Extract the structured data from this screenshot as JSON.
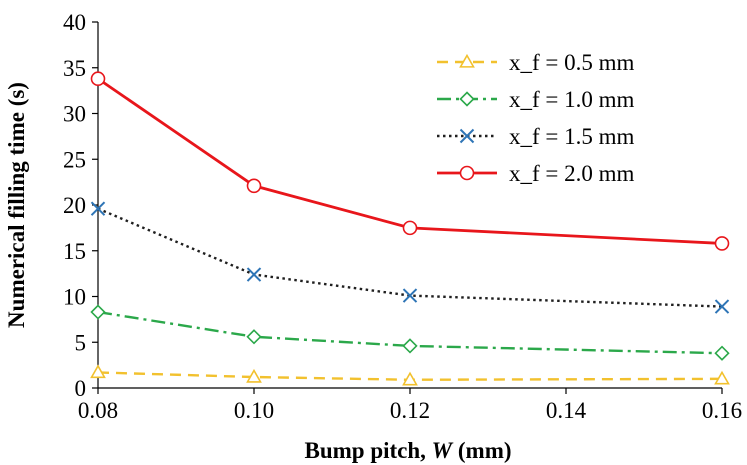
{
  "chart_data": {
    "type": "line",
    "title": "",
    "xlabel": "Bump pitch, ",
    "xlabel_italic": "W",
    "xlabel_suffix": " (mm)",
    "ylabel": "Numerical filling time (s)",
    "xlim": [
      0.08,
      0.16
    ],
    "ylim": [
      0,
      40
    ],
    "x_ticks": [
      "0.08",
      "0.10",
      "0.12",
      "0.14",
      "0.16"
    ],
    "y_ticks": [
      "0",
      "5",
      "10",
      "15",
      "20",
      "25",
      "30",
      "35",
      "40"
    ],
    "grid": false,
    "legend_position": "top-right",
    "x": [
      0.08,
      0.1,
      0.12,
      0.16
    ],
    "series": [
      {
        "name": "x_f = 0.5 mm",
        "values": [
          1.7,
          1.2,
          0.9,
          1.0
        ],
        "color": "#F2C12E",
        "dash": "dashed",
        "marker": "triangle"
      },
      {
        "name": "x_f = 1.0 mm",
        "values": [
          8.3,
          5.6,
          4.6,
          3.8
        ],
        "color": "#2BA84A",
        "dash": "dash-dot",
        "marker": "diamond"
      },
      {
        "name": "x_f = 1.5 mm",
        "values": [
          19.6,
          12.4,
          10.1,
          8.9
        ],
        "color": "#1F1F1F",
        "marker_color": "#2E75B6",
        "dash": "dotted",
        "marker": "x"
      },
      {
        "name": "x_f = 2.0 mm",
        "values": [
          33.8,
          22.1,
          17.5,
          15.8
        ],
        "color": "#E8161B",
        "dash": "solid",
        "marker": "circle"
      }
    ]
  }
}
